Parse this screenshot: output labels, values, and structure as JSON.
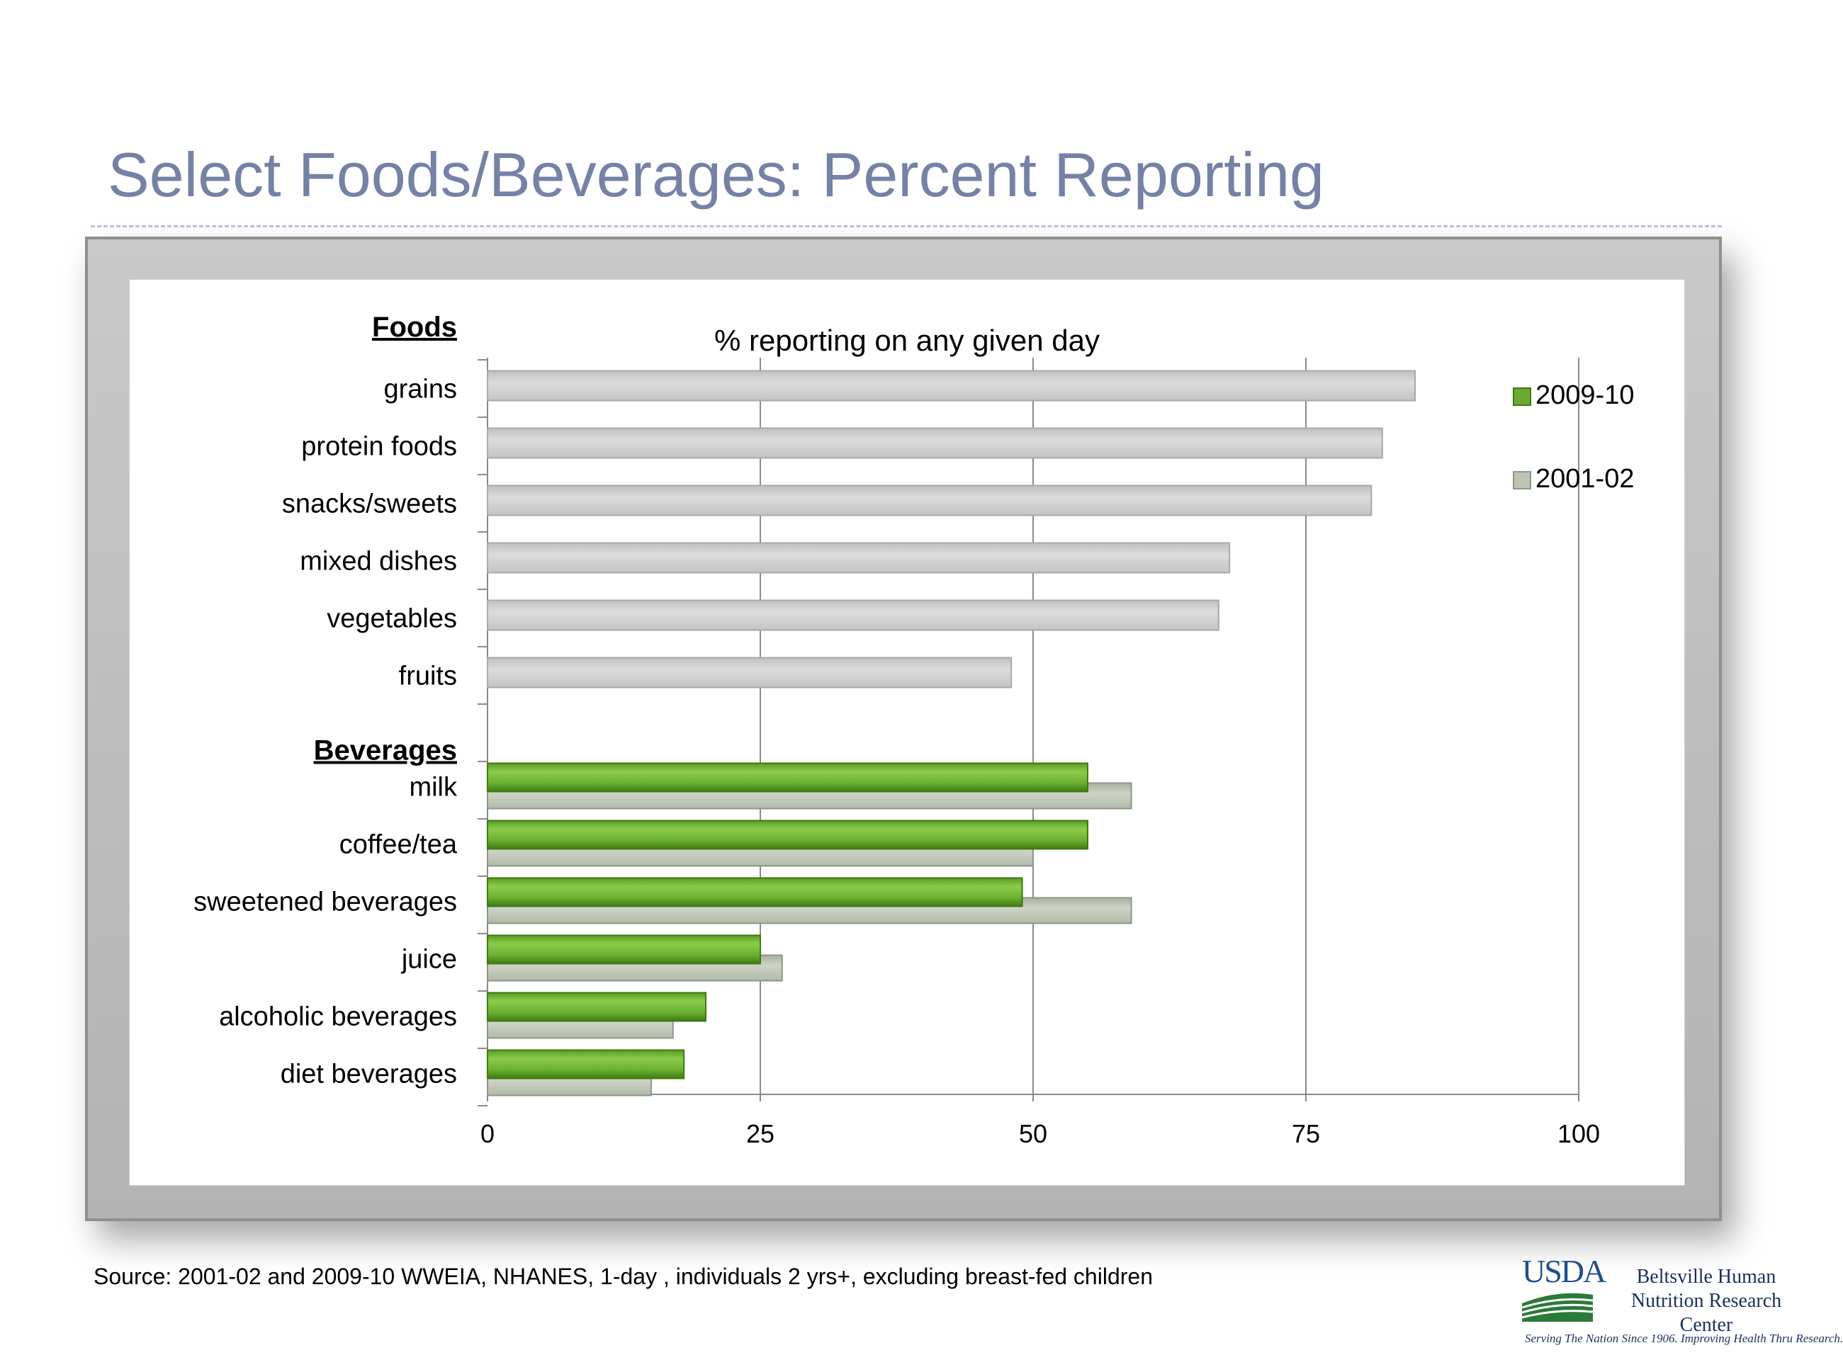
{
  "slide": {
    "title": "Select Foods/Beverages:  Percent Reporting",
    "source": "Source:  2001-02 and 2009-10 WWEIA, NHANES, 1-day , individuals 2 yrs+, excluding breast-fed children"
  },
  "logo": {
    "wordmark": "USDA",
    "center_name": "Beltsville Human Nutrition Research Center",
    "tagline": "Serving The Nation Since 1906. Improving Health Thru Research."
  },
  "colors": {
    "green": "#6aaa30",
    "green_dark": "#3f7a12",
    "gray": "#d4d4d4",
    "gray_green": "#bcc4b4"
  },
  "chart_data": {
    "type": "bar",
    "orientation": "horizontal",
    "title": "% reporting on any given day",
    "xlim": [
      0,
      100
    ],
    "xticks": [
      0,
      25,
      50,
      75,
      100
    ],
    "group_headers": [
      "Foods",
      "Beverages"
    ],
    "series": [
      {
        "name": "2009-10"
      },
      {
        "name": "2001-02"
      }
    ],
    "foods": {
      "categories": [
        "grains",
        "protein foods",
        "snacks/sweets",
        "mixed dishes",
        "vegetables",
        "fruits"
      ],
      "values": [
        85,
        82,
        81,
        68,
        67,
        48
      ]
    },
    "beverages": {
      "categories": [
        "milk",
        "coffee/tea",
        "sweetened beverages",
        "juice",
        "alcoholic beverages",
        "diet beverages"
      ],
      "values_2009_10": [
        55,
        55,
        49,
        25,
        20,
        18
      ],
      "values_2001_02": [
        59,
        50,
        59,
        27,
        17,
        15
      ]
    },
    "legend_position": "top-right"
  }
}
